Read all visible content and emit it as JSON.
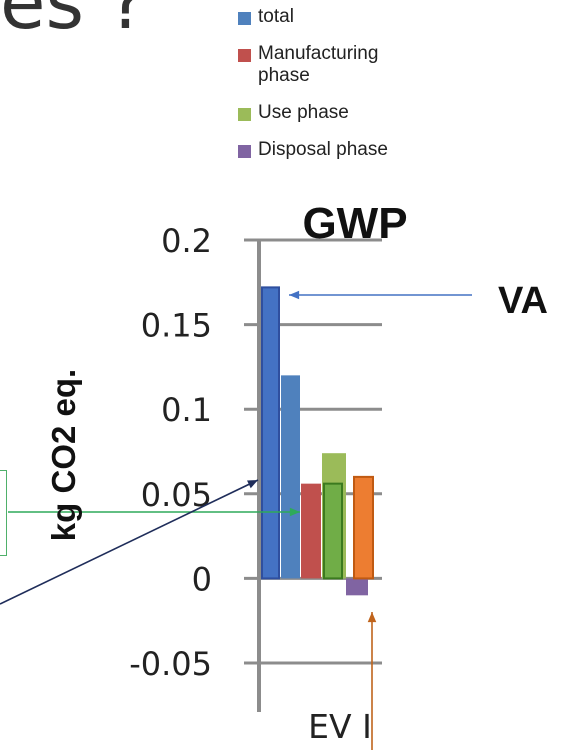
{
  "header": {
    "partial_text": "es ?"
  },
  "legend": {
    "items": [
      {
        "label": "total",
        "color": "#4f81bd"
      },
      {
        "label": "Manufacturing phase",
        "color": "#c0504d"
      },
      {
        "label": "Use phase",
        "color": "#9bbb59"
      },
      {
        "label": "Disposal phase",
        "color": "#8064a2"
      }
    ]
  },
  "annotations": {
    "va_label": "VA"
  },
  "chart_data": {
    "type": "bar",
    "title": "GWP",
    "ylabel": "kg CO2 eq.",
    "xlabel": "",
    "categories": [
      "EV I"
    ],
    "ylim": [
      -0.05,
      0.2
    ],
    "yticks": [
      "0.2",
      "0.15",
      "0.1",
      "0.05",
      "0",
      "-0.05"
    ],
    "ytick_values": [
      0.2,
      0.15,
      0.1,
      0.05,
      0,
      -0.05
    ],
    "grid": true,
    "series": [
      {
        "name": "VA total",
        "value": 0.172,
        "color": "#4472c4"
      },
      {
        "name": "total",
        "value": 0.12,
        "color": "#4f81bd"
      },
      {
        "name": "Manufacturing phase",
        "value": 0.056,
        "color": "#c0504d"
      },
      {
        "name": "Use phase",
        "value": 0.074,
        "color": "#9bbb59"
      },
      {
        "name": "Use phase",
        "value": 0.056,
        "color": "#70ad47"
      },
      {
        "name": "Disposal phase",
        "value": -0.01,
        "color": "#8064a2"
      },
      {
        "name": "",
        "value": 0.06,
        "color": "#ed7d31"
      }
    ]
  }
}
